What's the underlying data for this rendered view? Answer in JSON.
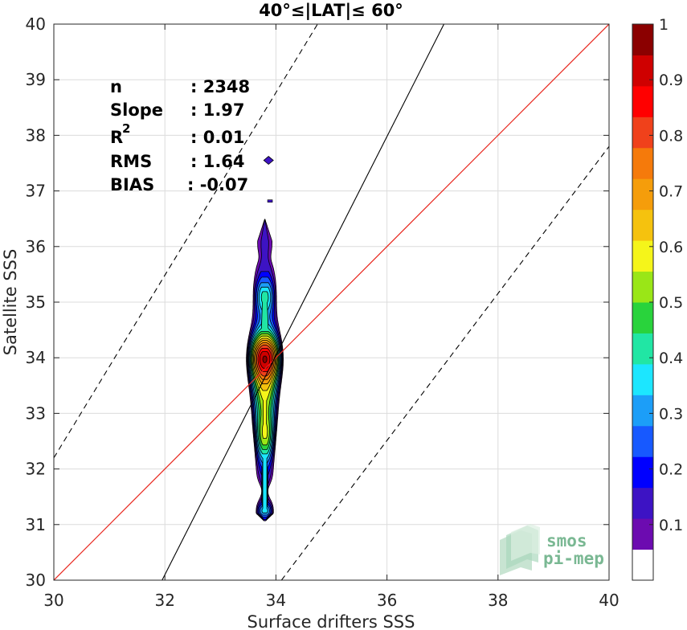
{
  "chart_data": {
    "type": "scatter",
    "title": "40°≤|LAT|≤ 60°",
    "xlabel": "Surface drifters SSS",
    "ylabel": "Satellite SSS",
    "xlim": [
      30,
      40
    ],
    "ylim": [
      30,
      40
    ],
    "x_ticks": [
      "30",
      "32",
      "34",
      "36",
      "38",
      "40"
    ],
    "y_ticks": [
      "30",
      "31",
      "32",
      "33",
      "34",
      "35",
      "36",
      "37",
      "38",
      "39",
      "40"
    ],
    "grid": true,
    "stats": {
      "n_label": "n",
      "n_value": ": 2348",
      "slope_label": "Slope",
      "slope_value": ": 1.97",
      "r2_label": "R",
      "r2_sup": "2",
      "r2_value": ": 0.01",
      "rms_label": "RMS",
      "rms_value": ": 1.64",
      "bias_label": "BIAS",
      "bias_value": ": -0.07"
    },
    "lines": {
      "identity": {
        "color": "#e8251c",
        "points": [
          [
            30,
            30
          ],
          [
            40,
            40
          ]
        ]
      },
      "regression": {
        "color": "#000000",
        "slope": 1.97,
        "x_at_y30": 31.95
      },
      "envelope_upper": {
        "style": "dashed",
        "points": [
          [
            30,
            32.2
          ],
          [
            34.75,
            40
          ]
        ]
      },
      "envelope_lower": {
        "style": "dashed",
        "points": [
          [
            34.1,
            30
          ],
          [
            40,
            37.8
          ]
        ]
      }
    },
    "density_center": {
      "x": 33.8,
      "y_range": [
        31.05,
        36.5
      ]
    },
    "colorbar": {
      "ticks": [
        "0.1",
        "0.2",
        "0.3",
        "0.4",
        "0.5",
        "0.6",
        "0.7",
        "0.8",
        "0.9",
        "1"
      ],
      "range": [
        0,
        1
      ],
      "colors": [
        "#ffffff",
        "#6c0bb0",
        "#3d13c4",
        "#0000ff",
        "#1759ff",
        "#1c9ef8",
        "#1ce6ff",
        "#21e6a4",
        "#29d33c",
        "#9ae617",
        "#f5f51a",
        "#f5c20e",
        "#f59d0b",
        "#f57a0b",
        "#f0411b",
        "#ff0000",
        "#cf0000",
        "#8b0000"
      ]
    }
  },
  "logo": {
    "line1": "smos",
    "line2": "pi-mep"
  }
}
